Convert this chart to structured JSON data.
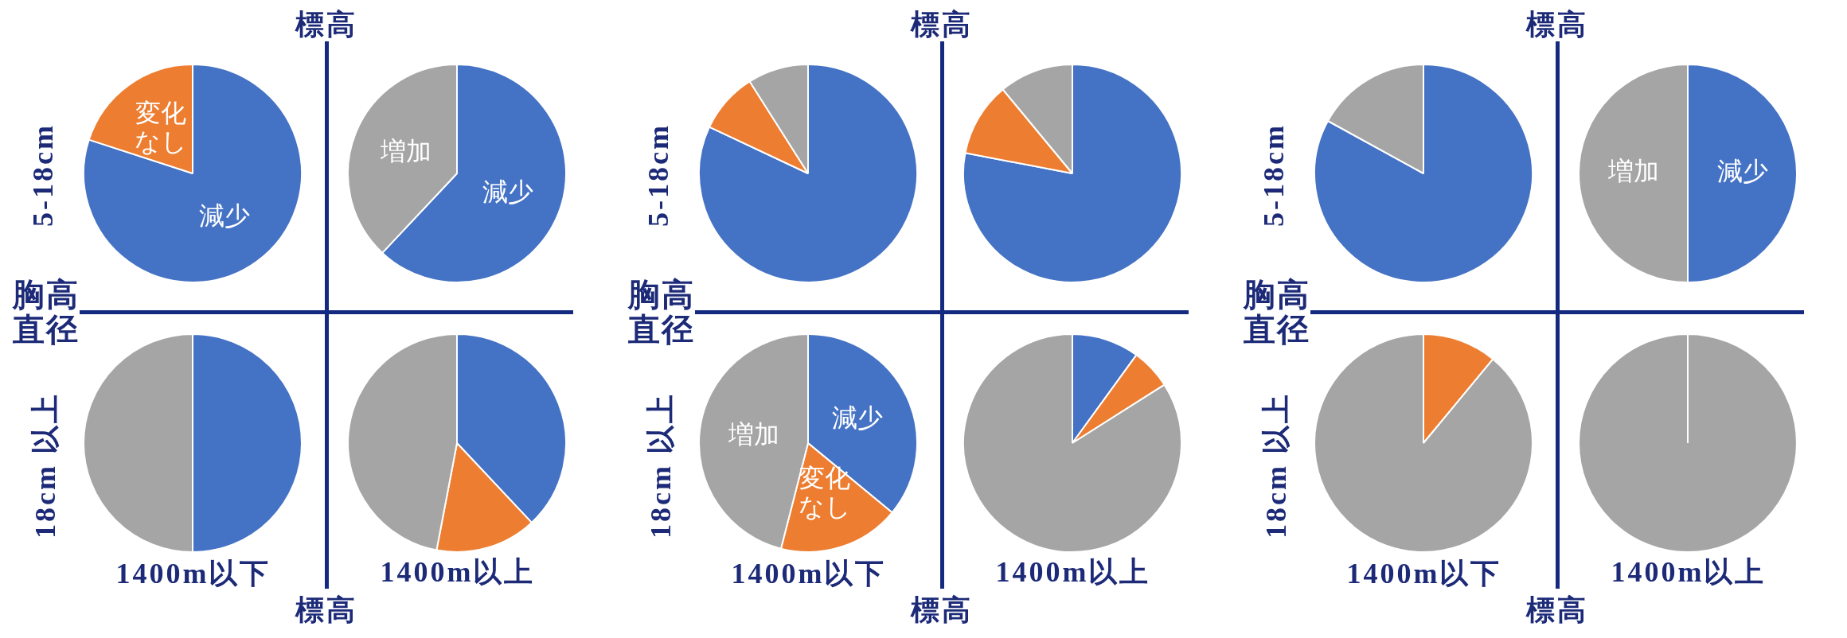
{
  "chart_data": [
    {
      "type": "pie",
      "categories": [
        "減少",
        "変化なし",
        null
      ],
      "values": [
        80,
        20,
        0
      ],
      "colors": [
        "#4472c4",
        "#ed7d31",
        "#a5a5a5"
      ],
      "annotations": [
        "標高",
        "5-18cm",
        "胸高直径",
        "18cm 以上",
        "1400m以下",
        "1400m以上",
        "標高"
      ]
    },
    {
      "type": "pie",
      "categories": [
        "減少",
        null,
        "増加"
      ],
      "values": [
        62,
        0,
        38
      ],
      "colors": [
        "#4472c4",
        "#ed7d31",
        "#a5a5a5"
      ]
    },
    {
      "type": "pie",
      "categories": [
        null,
        null,
        null
      ],
      "values": [
        50,
        0,
        50
      ],
      "colors": [
        "#4472c4",
        "#ed7d31",
        "#a5a5a5"
      ]
    },
    {
      "type": "pie",
      "categories": [
        null,
        null,
        null
      ],
      "values": [
        38,
        15,
        47
      ],
      "colors": [
        "#4472c4",
        "#ed7d31",
        "#a5a5a5"
      ]
    },
    {
      "type": "pie",
      "categories": [
        null,
        null,
        null
      ],
      "values": [
        82,
        9,
        9
      ],
      "colors": [
        "#4472c4",
        "#ed7d31",
        "#a5a5a5"
      ],
      "annotations": [
        "標高",
        "5-18cm",
        "胸高直径",
        "18cm 以上",
        "1400m以下",
        "1400m以上",
        "標高"
      ]
    },
    {
      "type": "pie",
      "categories": [
        null,
        null,
        null
      ],
      "values": [
        78,
        11,
        11
      ],
      "colors": [
        "#4472c4",
        "#ed7d31",
        "#a5a5a5"
      ]
    },
    {
      "type": "pie",
      "categories": [
        "減少",
        "変化なし",
        "増加"
      ],
      "values": [
        36,
        18,
        46
      ],
      "colors": [
        "#4472c4",
        "#ed7d31",
        "#a5a5a5"
      ]
    },
    {
      "type": "pie",
      "categories": [
        null,
        null,
        null
      ],
      "values": [
        10,
        6,
        84
      ],
      "colors": [
        "#4472c4",
        "#ed7d31",
        "#a5a5a5"
      ]
    },
    {
      "type": "pie",
      "categories": [
        null,
        null,
        null
      ],
      "values": [
        83,
        0,
        17
      ],
      "colors": [
        "#4472c4",
        "#ed7d31",
        "#a5a5a5"
      ],
      "annotations": [
        "標高",
        "5-18cm",
        "胸高直径",
        "18cm 以上",
        "1400m以下",
        "1400m以上",
        "標高"
      ]
    },
    {
      "type": "pie",
      "categories": [
        "減少",
        null,
        "増加"
      ],
      "values": [
        50,
        0,
        50
      ],
      "colors": [
        "#4472c4",
        "#ed7d31",
        "#a5a5a5"
      ]
    },
    {
      "type": "pie",
      "categories": [
        null,
        null,
        null
      ],
      "values": [
        0,
        11,
        89
      ],
      "colors": [
        "#4472c4",
        "#ed7d31",
        "#a5a5a5"
      ]
    },
    {
      "type": "pie",
      "categories": [
        null,
        null,
        null
      ],
      "values": [
        0,
        0,
        100
      ],
      "colors": [
        "#4472c4",
        "#ed7d31",
        "#a5a5a5"
      ]
    }
  ]
}
